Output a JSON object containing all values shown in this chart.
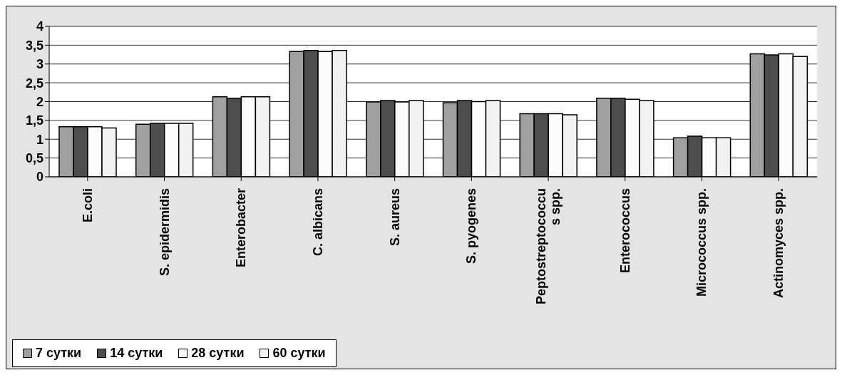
{
  "chart_data": {
    "type": "bar",
    "categories": [
      "E.coli",
      "S. epidermidis",
      "Enterobacter",
      "C. albicans",
      "S. aureus",
      "S. pyogenes",
      "Peptostreptococcus spp.",
      "Enterococcus",
      "Micrococcus spp.",
      "Actinomyces spp."
    ],
    "series": [
      {
        "name": "7 сутки",
        "color": "#a0a0a0",
        "values": [
          1.33,
          1.4,
          2.13,
          3.33,
          1.99,
          1.97,
          1.68,
          2.09,
          1.04,
          3.27
        ]
      },
      {
        "name": "14 сутки",
        "color": "#4d4d4d",
        "values": [
          1.33,
          1.42,
          2.09,
          3.36,
          2.03,
          2.03,
          1.68,
          2.09,
          1.08,
          3.24
        ]
      },
      {
        "name": "28 сутки",
        "color": "#fcfcfc",
        "values": [
          1.33,
          1.42,
          2.13,
          3.33,
          1.99,
          2.0,
          1.68,
          2.06,
          1.04,
          3.27
        ]
      },
      {
        "name": "60 сутки",
        "color": "#f2f2f2",
        "values": [
          1.3,
          1.42,
          2.13,
          3.36,
          2.03,
          2.03,
          1.65,
          2.03,
          1.04,
          3.2
        ]
      }
    ],
    "ylim": [
      0,
      4
    ],
    "yticks": [
      {
        "value": 0,
        "label": "0"
      },
      {
        "value": 0.5,
        "label": "0,5"
      },
      {
        "value": 1,
        "label": "1"
      },
      {
        "value": 1.5,
        "label": "1,5"
      },
      {
        "value": 2,
        "label": "2"
      },
      {
        "value": 2.5,
        "label": "2,5"
      },
      {
        "value": 3,
        "label": "3"
      },
      {
        "value": 3.5,
        "label": "3,5"
      },
      {
        "value": 4,
        "label": "4"
      }
    ],
    "grid": "y",
    "legend": "bottom left"
  }
}
